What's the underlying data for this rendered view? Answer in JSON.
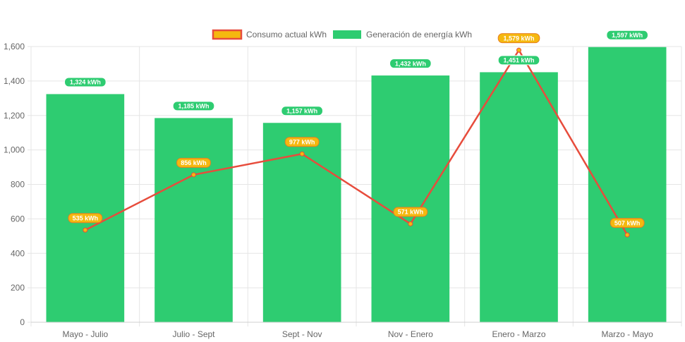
{
  "chart_data": {
    "type": "bar",
    "categories": [
      "Mayo - Julio",
      "Julio - Sept",
      "Sept - Nov",
      "Nov - Enero",
      "Enero - Marzo",
      "Marzo - Mayo"
    ],
    "ylim": [
      0,
      1600
    ],
    "yticks": [
      0,
      200,
      400,
      600,
      800,
      1000,
      1200,
      1400,
      1600
    ],
    "ytick_labels": [
      "0",
      "200",
      "400",
      "600",
      "800",
      "1,000",
      "1,200",
      "1,400",
      "1,600"
    ],
    "grid": true,
    "legend_position": "top",
    "series": [
      {
        "name": "Consumo actual kWh",
        "type": "line",
        "values": [
          535,
          856,
          977,
          571,
          1579,
          507
        ],
        "labels": [
          "535 kWh",
          "856 kWh",
          "977 kWh",
          "571 kWh",
          "1,579 kWh",
          "507 kWh"
        ],
        "color": "#e74c3c",
        "point_color": "#f5b80f"
      },
      {
        "name": "Generación de energía kWh",
        "type": "bar",
        "values": [
          1324,
          1185,
          1157,
          1432,
          1451,
          1597
        ],
        "labels": [
          "1,324 kWh",
          "1,185 kWh",
          "1,157 kWh",
          "1,432 kWh",
          "1,451 kWh",
          "1,597 kWh"
        ],
        "color": "#2ecc71"
      }
    ]
  }
}
